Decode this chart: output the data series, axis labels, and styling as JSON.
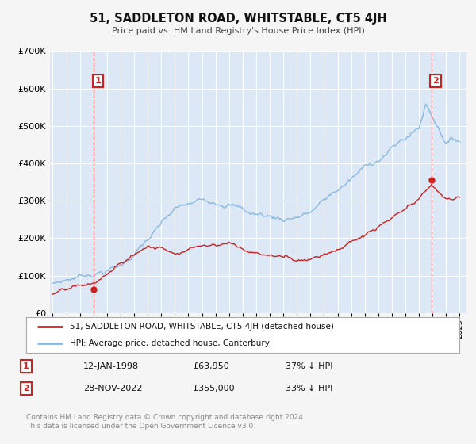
{
  "title": "51, SADDLETON ROAD, WHITSTABLE, CT5 4JH",
  "subtitle": "Price paid vs. HM Land Registry's House Price Index (HPI)",
  "ylim": [
    0,
    700000
  ],
  "yticks": [
    0,
    100000,
    200000,
    300000,
    400000,
    500000,
    600000,
    700000
  ],
  "xlim_start": 1994.8,
  "xlim_end": 2025.5,
  "hpi_color": "#88b8e0",
  "price_color": "#cc2222",
  "dashed_line_color": "#cc3333",
  "bg_color": "#f5f5f5",
  "plot_bg_color": "#dce8f5",
  "grid_color": "#ffffff",
  "annotation_box_color": "#cc2222",
  "sale1_x": 1998.04,
  "sale1_y": 63950,
  "sale1_label": "1",
  "sale1_date": "12-JAN-1998",
  "sale1_price": "£63,950",
  "sale1_hpi": "37% ↓ HPI",
  "sale2_x": 2022.92,
  "sale2_y": 355000,
  "sale2_label": "2",
  "sale2_date": "28-NOV-2022",
  "sale2_price": "£355,000",
  "sale2_hpi": "33% ↓ HPI",
  "legend_line1": "51, SADDLETON ROAD, WHITSTABLE, CT5 4JH (detached house)",
  "legend_line2": "HPI: Average price, detached house, Canterbury",
  "footer1": "Contains HM Land Registry data © Crown copyright and database right 2024.",
  "footer2": "This data is licensed under the Open Government Licence v3.0."
}
